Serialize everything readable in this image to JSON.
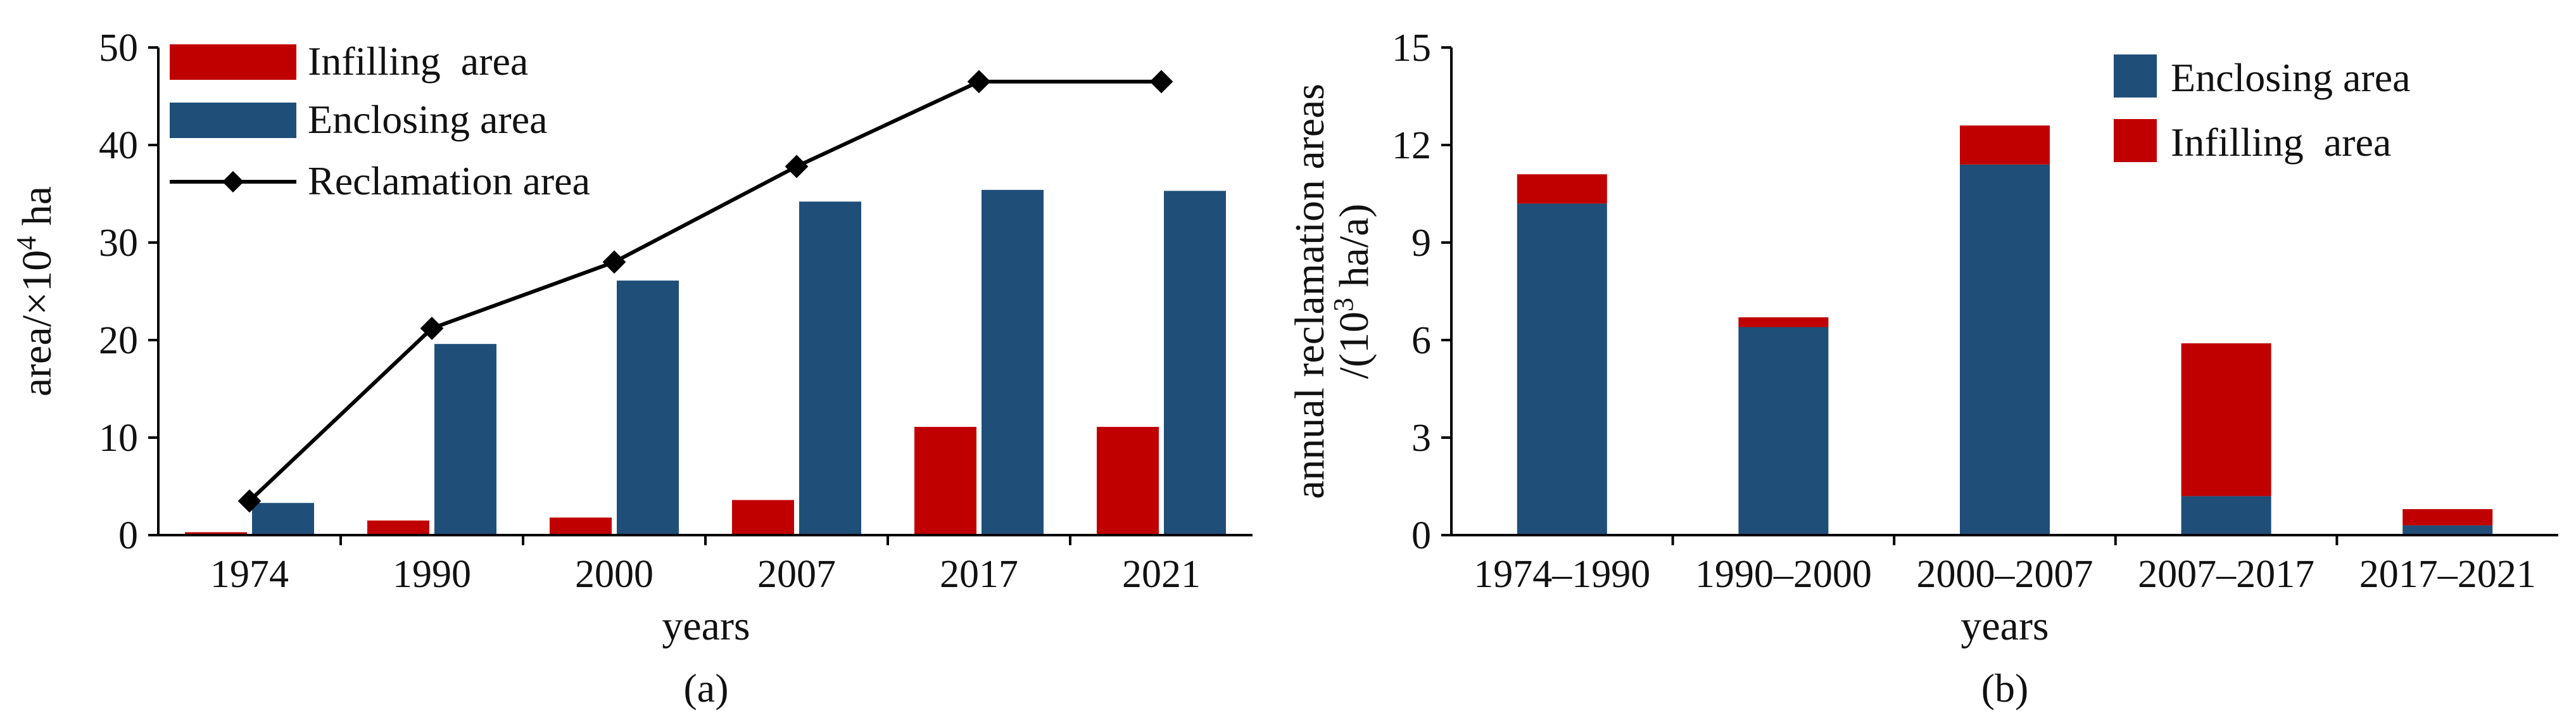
{
  "colors": {
    "infilling": "#c00000",
    "enclosing": "#1f4e79",
    "line": "#000000"
  },
  "chart_data": [
    {
      "type": "bar",
      "caption": "(a)",
      "xlabel": "years",
      "ylabel_main": "area/×10",
      "ylabel_sup": "4",
      "ylabel_unit": " ha",
      "ylim": [
        0,
        50
      ],
      "yticks": [
        "0",
        "10",
        "20",
        "30",
        "40",
        "50"
      ],
      "categories": [
        "1974",
        "1990",
        "2000",
        "2007",
        "2017",
        "2021"
      ],
      "series": [
        {
          "name": "Infilling  area",
          "kind": "bar",
          "color": "#c00000",
          "values": [
            0.3,
            1.5,
            1.8,
            3.6,
            11.1,
            11.1
          ]
        },
        {
          "name": "Enclosing area",
          "kind": "bar",
          "color": "#1f4e79",
          "values": [
            3.3,
            19.6,
            26.1,
            34.2,
            35.4,
            35.3
          ]
        },
        {
          "name": "Reclamation area",
          "kind": "line",
          "color": "#000000",
          "values": [
            3.5,
            21.2,
            28.0,
            37.8,
            46.5,
            46.5
          ]
        }
      ],
      "legend": "top-left"
    },
    {
      "type": "bar",
      "stacked": true,
      "caption": "(b)",
      "xlabel": "years",
      "ylabel_line1": "annual reclamation areas",
      "ylabel_line2_pre": "/(10",
      "ylabel_line2_sup": "3",
      "ylabel_line2_post": " ha/a)",
      "ylim": [
        0,
        15
      ],
      "yticks": [
        "0",
        "3",
        "6",
        "9",
        "12",
        "15"
      ],
      "categories": [
        "1974–1990",
        "1990–2000",
        "2000–2007",
        "2007–2017",
        "2017–2021"
      ],
      "series": [
        {
          "name": "Enclosing area",
          "color": "#1f4e79",
          "values": [
            10.2,
            6.4,
            11.4,
            1.2,
            0.3
          ]
        },
        {
          "name": "Infilling  area",
          "color": "#c00000",
          "values": [
            0.9,
            0.3,
            1.2,
            4.7,
            0.5
          ]
        }
      ],
      "legend": "top-right"
    }
  ]
}
